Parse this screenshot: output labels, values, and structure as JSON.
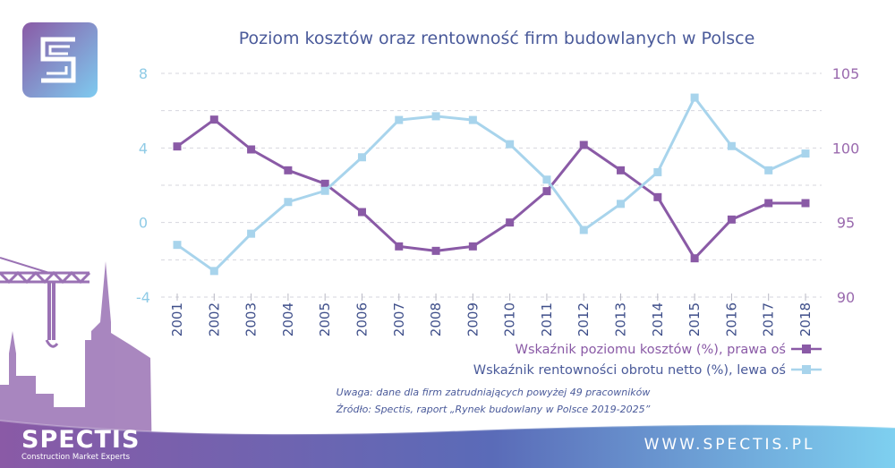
{
  "chart_data": {
    "type": "line",
    "title": "Poziom kosztów oraz rentowność firm budowlanych w Polsce",
    "categories": [
      "2001",
      "2002",
      "2003",
      "2004",
      "2005",
      "2006",
      "2007",
      "2008",
      "2009",
      "2010",
      "2011",
      "2012",
      "2013",
      "2014",
      "2015",
      "2016",
      "2017",
      "2018"
    ],
    "left_axis": {
      "ylim": [
        -4,
        8
      ],
      "ticks": [
        "-4",
        "0",
        "4",
        "8"
      ]
    },
    "right_axis": {
      "ylim": [
        90,
        105
      ],
      "ticks": [
        "90",
        "95",
        "100",
        "105"
      ]
    },
    "grid": true,
    "legend_position": "bottom-right",
    "series": [
      {
        "name": "Wskaźnik poziomu kosztów (%), prawa oś",
        "axis": "right",
        "color": "#8a5aa6",
        "marker": "square",
        "values": [
          100.1,
          101.9,
          99.9,
          98.5,
          97.6,
          95.7,
          93.4,
          93.1,
          93.4,
          95.0,
          97.1,
          100.2,
          98.5,
          96.7,
          92.6,
          95.2,
          96.3,
          96.3
        ]
      },
      {
        "name": "Wskaźnik rentowności obrotu netto (%), lewa oś",
        "axis": "left",
        "color": "#a8d4ec",
        "marker": "square",
        "values": [
          -1.2,
          -2.6,
          -0.6,
          1.1,
          1.7,
          3.5,
          5.5,
          5.7,
          5.5,
          4.2,
          2.3,
          -0.4,
          1.0,
          2.7,
          6.7,
          4.1,
          2.8,
          3.7
        ]
      }
    ]
  },
  "notes": {
    "line1": "Uwaga: dane dla firm zatrudniających powyżej 49 pracowników",
    "line2": "Źródło: Spectis, raport „Rynek budowlany w Polsce 2019-2025”"
  },
  "brand": {
    "name": "SPECTIS",
    "tagline": "Construction Market Experts",
    "url": "WWW.SPECTIS.PL",
    "logo_icon": "spectis-s-logo-icon",
    "gradient_colors": [
      "#8a5aa6",
      "#5a6bb8",
      "#7ed0f0"
    ]
  }
}
